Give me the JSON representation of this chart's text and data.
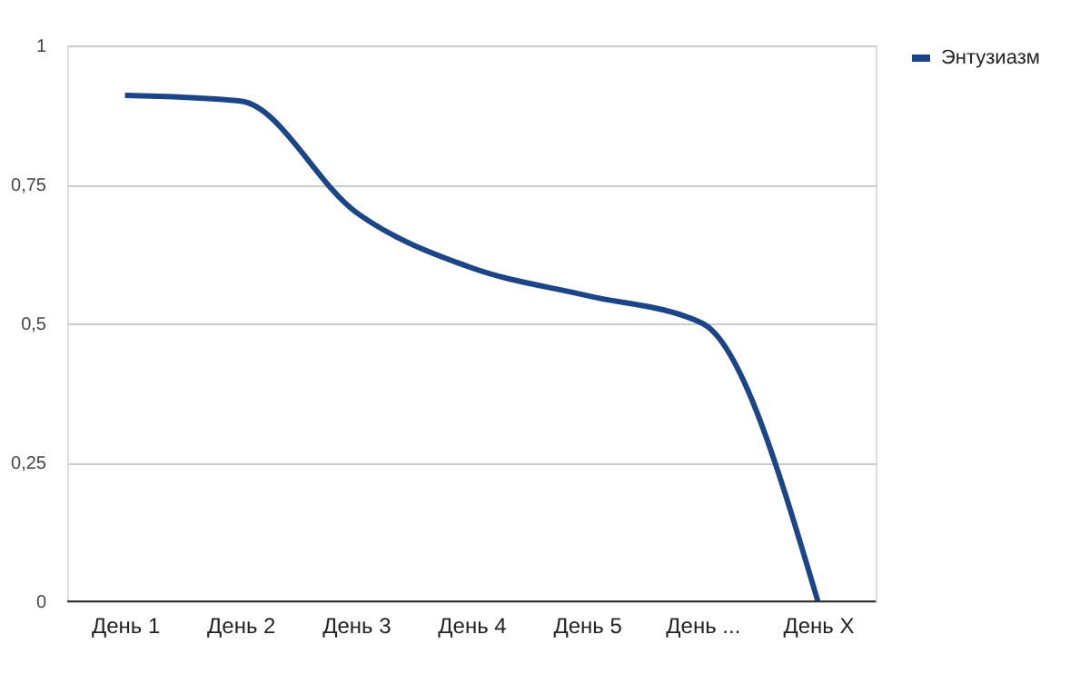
{
  "chart_data": {
    "type": "line",
    "categories": [
      "День 1",
      "День 2",
      "День 3",
      "День 4",
      "День 5",
      "День ...",
      "День X"
    ],
    "series": [
      {
        "name": "Энтузиазм",
        "color": "#1c4587",
        "values": [
          0.91,
          0.9,
          0.7,
          0.6,
          0.55,
          0.5,
          0.0
        ]
      }
    ],
    "ylim": [
      0,
      1
    ],
    "yticks": [
      0,
      {
        "value": 0.25,
        "label": "0,25"
      },
      {
        "value": 0.5,
        "label": "0,5"
      },
      {
        "value": 0.75,
        "label": "0,75"
      },
      1
    ],
    "grid": "y",
    "legend": "top right",
    "marker": "none",
    "line_style": "solid"
  }
}
